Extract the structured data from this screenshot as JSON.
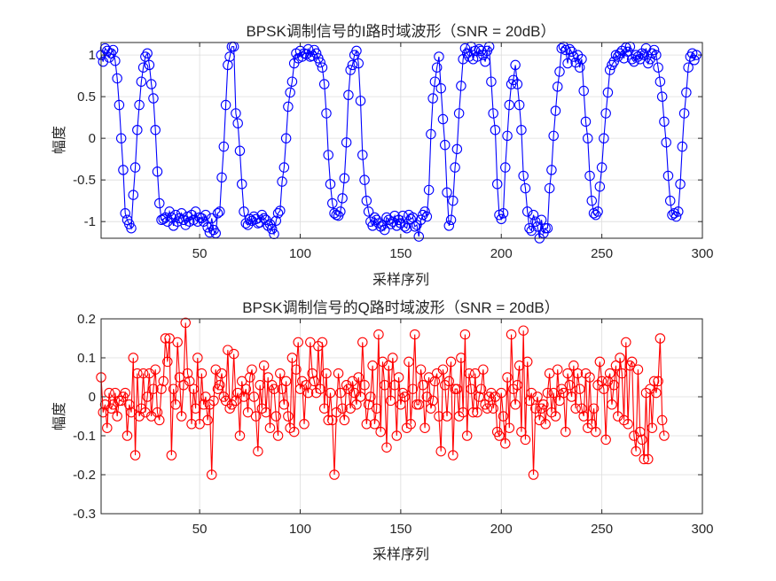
{
  "chart_data": [
    {
      "type": "line",
      "title": "BPSK调制信号的I路时域波形（SNR = 20dB）",
      "xlabel": "采样序列",
      "ylabel": "幅度",
      "xlim": [
        1,
        300
      ],
      "ylim": [
        -1.2,
        1.15
      ],
      "xticks": [
        50,
        100,
        150,
        200,
        250,
        300
      ],
      "xtick_labels": [
        "50",
        "100",
        "150",
        "200",
        "250",
        "300"
      ],
      "yticks": [
        -1,
        -0.5,
        0,
        0.5,
        1
      ],
      "ytick_labels": [
        "-1",
        "-0.5",
        "0",
        "0.5",
        "1"
      ],
      "grid": true,
      "marker": "circle",
      "color": "#0000ff",
      "series": [
        {
          "name": "I路",
          "x_start": 1,
          "values": [
            1.0,
            0.92,
            1.08,
            1.05,
            0.97,
            1.02,
            1.06,
            0.93,
            0.72,
            0.4,
            0.0,
            -0.38,
            -0.9,
            -0.98,
            -1.03,
            -1.08,
            -0.68,
            -0.35,
            0.1,
            0.4,
            0.68,
            0.85,
            0.98,
            1.02,
            0.88,
            0.65,
            0.48,
            0.1,
            -0.4,
            -0.78,
            -0.98,
            -0.97,
            -0.95,
            -1.0,
            -0.88,
            -0.95,
            -1.05,
            -0.92,
            -1.0,
            -0.96,
            -0.9,
            -0.98,
            -1.04,
            -0.94,
            -1.0,
            -0.92,
            -0.98,
            -0.88,
            -1.0,
            -0.95,
            -0.96,
            -1.0,
            -0.92,
            -1.07,
            -1.13,
            -0.96,
            -1.1,
            -1.14,
            -0.9,
            -0.88,
            -0.47,
            -0.1,
            0.4,
            0.88,
            0.98,
            1.1,
            1.1,
            0.3,
            0.18,
            -0.15,
            -0.55,
            -0.88,
            -1.02,
            -1.04,
            -0.97,
            -0.99,
            -0.94,
            -0.97,
            -1.02,
            -1.01,
            -0.92,
            -0.96,
            -0.98,
            -1.05,
            -1.03,
            -1.09,
            -1.15,
            -0.99,
            -0.9,
            -0.87,
            -0.52,
            -0.35,
            0.0,
            0.38,
            0.55,
            0.68,
            0.9,
            1.02,
            0.96,
            1.05,
            0.98,
            1.02,
            1.01,
            1.07,
            0.98,
            0.99,
            1.06,
            1.02,
            0.96,
            0.91,
            0.85,
            0.65,
            0.3,
            -0.2,
            -0.55,
            -0.78,
            -0.9,
            -0.92,
            -0.93,
            -0.88,
            -0.72,
            -0.48,
            -0.05,
            0.52,
            0.82,
            0.88,
            1.0,
            1.05,
            0.9,
            0.45,
            -0.2,
            -0.5,
            -0.75,
            -0.88,
            -1.0,
            -1.05,
            -0.95,
            -0.98,
            -1.02,
            -1.06,
            -1.04,
            -1.1,
            -0.95,
            -0.98,
            -1.03,
            -1.0,
            -0.93,
            -1.05,
            -0.98,
            -1.02,
            -0.93,
            -1.06,
            -1.08,
            -0.92,
            -0.97,
            -0.95,
            -1.06,
            -1.04,
            -1.18,
            -0.98,
            -0.92,
            -0.88,
            -0.94,
            -0.62,
            0.05,
            0.48,
            0.68,
            0.85,
            0.98,
            0.6,
            0.23,
            -0.08,
            -0.65,
            -1.05,
            -0.98,
            -0.75,
            -0.35,
            -0.13,
            0.3,
            0.63,
            0.95,
            1.08,
            1.02,
            0.98,
            1.1,
            0.95,
            1.05,
            0.98,
            1.07,
            1.05,
            1.0,
            0.92,
            1.05,
            1.1,
            0.68,
            0.3,
            0.1,
            -0.55,
            -0.92,
            -0.97,
            -0.9,
            -0.35,
            0.03,
            0.4,
            0.65,
            0.7,
            0.88,
            0.65,
            0.4,
            0.1,
            -0.45,
            -0.6,
            -0.88,
            -1.08,
            -1.11,
            -0.92,
            -1.0,
            -1.06,
            -1.2,
            -0.98,
            -1.14,
            -1.08,
            -1.08,
            -0.6,
            -0.38,
            0.03,
            0.33,
            0.62,
            0.8,
            1.08,
            1.1,
            1.06,
            0.9,
            1.07,
            1.04,
            0.98,
            0.91,
            1.0,
            0.85,
            0.95,
            0.57,
            0.2,
            0.0,
            -0.45,
            -0.75,
            -0.9,
            -0.92,
            -0.88,
            -0.58,
            -0.35,
            0.0,
            0.3,
            0.55,
            0.82,
            0.88,
            0.92,
            1.0,
            0.98,
            1.02,
            1.05,
            0.96,
            1.09,
            1.04,
            1.1,
            0.95,
            0.92,
            1.0,
            0.98,
            0.95,
            1.02,
            1.0,
            1.08,
            0.9,
            0.95,
            1.02,
            1.06,
            1.0,
            0.85,
            0.68,
            0.5,
            0.2,
            -0.05,
            -0.45,
            -0.75,
            -0.92,
            -0.9,
            -0.94,
            -0.88,
            -0.55,
            -0.1,
            0.3,
            0.55,
            0.85,
            0.98,
            1.02,
            0.94,
            1.0
          ]
        }
      ]
    },
    {
      "type": "line",
      "title": "BPSK调制信号的Q路时域波形（SNR = 20dB）",
      "xlabel": "采样序列",
      "ylabel": "幅度",
      "xlim": [
        1,
        300
      ],
      "ylim": [
        -0.3,
        0.2
      ],
      "xticks": [
        50,
        100,
        150,
        200,
        250,
        300
      ],
      "xtick_labels": [
        "50",
        "100",
        "150",
        "200",
        "250",
        "300"
      ],
      "yticks": [
        -0.3,
        -0.2,
        -0.1,
        0,
        0.1,
        0.2
      ],
      "ytick_labels": [
        "-0.3",
        "-0.2",
        "-0.1",
        "0",
        "0.1",
        "0.2"
      ],
      "grid": true,
      "marker": "circle",
      "color": "#ff0000",
      "series": [
        {
          "name": "Q路",
          "x_start": 1,
          "values": [
            0.05,
            -0.04,
            -0.02,
            -0.08,
            0.01,
            -0.03,
            -0.02,
            0.01,
            -0.05,
            -0.01,
            -0.01,
            0.0,
            0.01,
            -0.1,
            -0.02,
            -0.04,
            0.1,
            -0.15,
            0.06,
            -0.05,
            -0.03,
            0.06,
            -0.04,
            0.0,
            0.06,
            -0.05,
            0.02,
            0.07,
            -0.04,
            -0.06,
            0.02,
            0.04,
            0.15,
            0.09,
            0.15,
            -0.15,
            0.02,
            -0.02,
            0.14,
            0.05,
            -0.05,
            0.03,
            0.19,
            0.06,
            0.04,
            -0.07,
            0.02,
            -0.03,
            0.1,
            -0.07,
            0.06,
            -0.02,
            0.0,
            -0.06,
            -0.02,
            -0.2,
            -0.01,
            0.07,
            0.02,
            0.03,
            0.06,
            0.0,
            -0.01,
            0.12,
            -0.03,
            -0.02,
            0.11,
            -0.01,
            0.01,
            -0.1,
            0.04,
            0.0,
            0.02,
            -0.04,
            0.05,
            0.07,
            0.0,
            -0.05,
            -0.14,
            0.03,
            -0.03,
            0.08,
            -0.04,
            0.05,
            -0.08,
            0.03,
            0.02,
            -0.05,
            -0.1,
            0.06,
            0.02,
            -0.02,
            0.04,
            -0.05,
            -0.08,
            0.1,
            -0.09,
            0.07,
            0.14,
            0.02,
            0.04,
            -0.07,
            0.03,
            0.01,
            0.14,
            0.06,
            0.04,
            0.01,
            0.13,
            0.02,
            0.14,
            -0.03,
            0.06,
            -0.06,
            0.01,
            -0.06,
            -0.2,
            -0.04,
            0.06,
            0.01,
            -0.03,
            -0.06,
            0.03,
            0.02,
            -0.03,
            0.04,
            0.01,
            -0.02,
            0.05,
            0.0,
            0.14,
            0.03,
            -0.07,
            -0.02,
            0.0,
            0.08,
            -0.07,
            -0.03,
            0.16,
            -0.09,
            0.09,
            0.03,
            -0.13,
            0.08,
            -0.01,
            0.1,
            0.03,
            -0.1,
            0.05,
            -0.02,
            0.01,
            0.0,
            -0.08,
            0.09,
            -0.07,
            0.02,
            0.16,
            -0.02,
            -0.02,
            0.07,
            0.03,
            -0.08,
            0.0,
            0.05,
            -0.03,
            -0.01,
            0.04,
            0.06,
            -0.05,
            -0.14,
            0.07,
            0.03,
            -0.05,
            0.04,
            0.09,
            -0.15,
            0.02,
            0.02,
            -0.05,
            0.1,
            -0.04,
            0.16,
            -0.1,
            0.06,
            0.02,
            -0.04,
            0.06,
            -0.04,
            0.0,
            0.02,
            0.07,
            -0.02,
            -0.03,
            0.0,
            0.01,
            -0.03,
            0.0,
            -0.09,
            -0.1,
            0.01,
            -0.05,
            -0.12,
            0.05,
            -0.08,
            0.16,
            0.02,
            -0.02,
            0.03,
            0.08,
            -0.09,
            0.17,
            -0.11,
            0.09,
            -0.01,
            0.01,
            -0.2,
            -0.03,
            0.0,
            -0.06,
            -0.03,
            -0.02,
            -0.07,
            0.01,
            0.06,
            -0.04,
            0.01,
            -0.05,
            0.07,
            -0.01,
            0.02,
            0.01,
            -0.09,
            0.06,
            0.03,
            0.0,
            0.08,
            -0.03,
            0.06,
            0.02,
            -0.03,
            -0.05,
            0.06,
            -0.08,
            0.05,
            -0.07,
            -0.03,
            -0.09,
            0.03,
            0.09,
            0.04,
            0.02,
            -0.11,
            0.04,
            0.06,
            -0.02,
            0.03,
            0.08,
            -0.05,
            0.1,
            0.06,
            -0.06,
            0.14,
            -0.07,
            0.08,
            0.09,
            -0.1,
            -0.14,
            0.07,
            -0.09,
            -0.11,
            -0.16,
            0.01,
            -0.16,
            0.02,
            -0.08,
            0.04,
            0.01,
            0.04,
            0.15,
            -0.06,
            -0.1
          ]
        }
      ]
    }
  ]
}
